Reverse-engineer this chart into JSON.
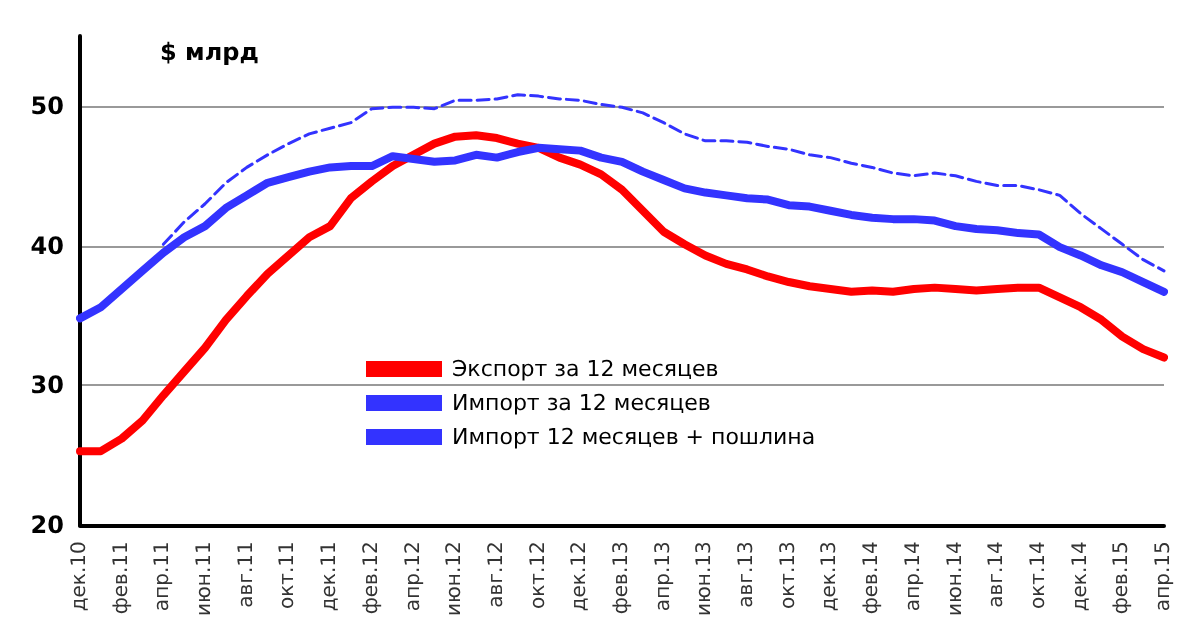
{
  "chart_data": {
    "type": "line",
    "ylabel": "$ млрд",
    "categories": [
      "дек.10",
      null,
      "фев.11",
      null,
      "апр.11",
      null,
      "июн.11",
      null,
      "авг.11",
      null,
      "окт.11",
      null,
      "дек.11",
      null,
      "фев.12",
      null,
      "апр.12",
      null,
      "июн.12",
      null,
      "авг.12",
      null,
      "окт.12",
      null,
      "дек.12",
      null,
      "фев.13",
      null,
      "апр.13",
      null,
      "июн.13",
      null,
      "авг.13",
      null,
      "окт.13",
      null,
      "дек.13",
      null,
      "фев.14",
      null,
      "апр.14",
      null,
      "июн.14",
      null,
      "авг.14",
      null,
      "окт.14",
      null,
      "дек.14",
      null,
      "фев.15",
      null,
      "апр.15"
    ],
    "series": [
      {
        "name": "Экспорт за 12 месяцев",
        "color": "#ff0000",
        "line_style": "solid",
        "values": [
          25.3,
          25.3,
          26.2,
          27.5,
          29.3,
          31.0,
          32.7,
          34.7,
          36.4,
          38.0,
          39.3,
          40.6,
          41.4,
          43.4,
          44.6,
          45.7,
          46.5,
          47.3,
          47.8,
          47.9,
          47.7,
          47.3,
          47.0,
          46.3,
          45.8,
          45.1,
          44.0,
          42.5,
          41.0,
          40.1,
          39.3,
          38.7,
          38.3,
          37.8,
          37.4,
          37.1,
          36.9,
          36.7,
          36.8,
          36.7,
          36.9,
          37.0,
          36.9,
          36.8,
          36.9,
          37.0,
          37.0,
          36.3,
          35.6,
          34.7,
          33.5,
          32.6,
          32.0
        ]
      },
      {
        "name": "Импорт за 12 месяцев",
        "color": "#3333ff",
        "line_style": "solid",
        "values": [
          34.8,
          35.6,
          36.9,
          38.2,
          39.5,
          40.6,
          41.4,
          42.7,
          43.6,
          44.5,
          44.9,
          45.3,
          45.6,
          45.7,
          45.7,
          46.4,
          46.2,
          46.0,
          46.1,
          46.5,
          46.3,
          46.7,
          47.0,
          46.9,
          46.8,
          46.3,
          46.0,
          45.3,
          44.7,
          44.1,
          43.8,
          43.6,
          43.4,
          43.3,
          42.9,
          42.8,
          42.5,
          42.2,
          42.0,
          41.9,
          41.9,
          41.8,
          41.4,
          41.2,
          41.1,
          40.9,
          40.8,
          39.9,
          39.3,
          38.6,
          38.1,
          37.4,
          36.7
        ]
      },
      {
        "name": "Импорт 12 месяцев + пошлина",
        "color": "#3333ff",
        "line_style": "dashed",
        "values": [
          null,
          null,
          null,
          null,
          40.1,
          41.7,
          43.0,
          44.5,
          45.6,
          46.5,
          47.3,
          48.0,
          48.4,
          48.8,
          49.8,
          49.9,
          49.9,
          49.8,
          50.4,
          50.4,
          50.5,
          50.8,
          50.7,
          50.5,
          50.4,
          50.1,
          49.9,
          49.5,
          48.8,
          48.0,
          47.5,
          47.5,
          47.4,
          47.1,
          46.9,
          46.5,
          46.3,
          45.9,
          45.6,
          45.2,
          45.0,
          45.2,
          45.0,
          44.6,
          44.3,
          44.3,
          44.0,
          43.6,
          42.3,
          41.2,
          40.1,
          39.0,
          38.2
        ]
      }
    ],
    "ylim": [
      20,
      55
    ],
    "yticks": [
      20,
      30,
      40,
      50
    ],
    "grid": "y",
    "legend": "bottom",
    "marker": "none"
  }
}
